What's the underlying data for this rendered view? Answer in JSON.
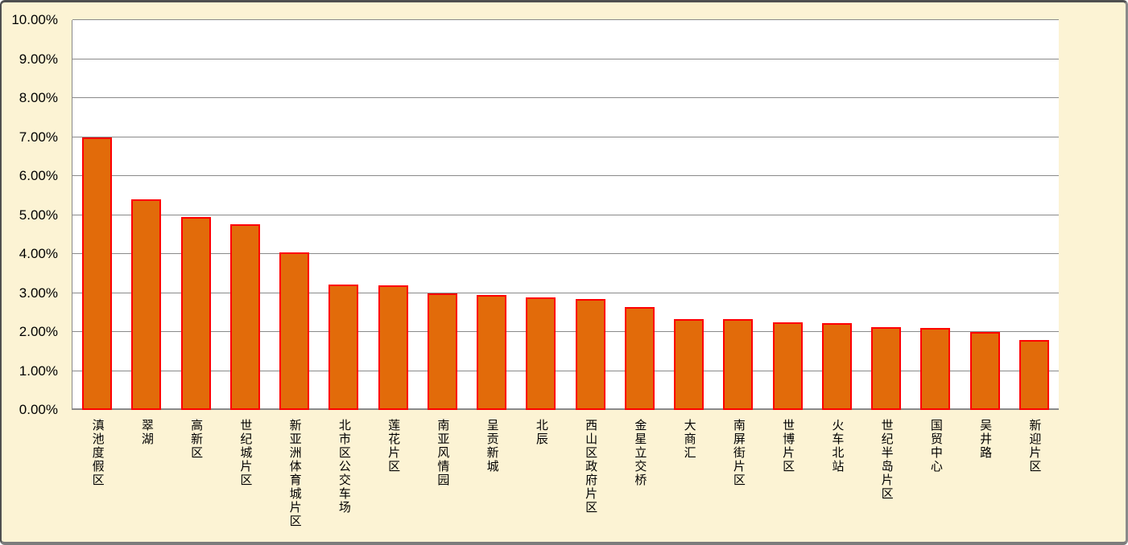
{
  "chart_data": {
    "type": "bar",
    "title": "",
    "xlabel": "",
    "ylabel": "",
    "categories": [
      "滇池度假区",
      "翠湖",
      "高新区",
      "世纪城片区",
      "新亚洲体育城片区",
      "北市区公交车场",
      "莲花片区",
      "南亚风情园",
      "呈贡新城",
      "北辰",
      "西山区政府片区",
      "金星立交桥",
      "大商汇",
      "南屏街片区",
      "世博片区",
      "火车北站",
      "世纪半岛片区",
      "国贸中心",
      "吴井路",
      "新迎片区"
    ],
    "values": [
      7.0,
      5.4,
      4.95,
      4.76,
      4.04,
      3.21,
      3.19,
      2.98,
      2.95,
      2.89,
      2.84,
      2.64,
      2.33,
      2.32,
      2.24,
      2.22,
      2.12,
      2.11,
      2.01,
      1.79
    ],
    "value_unit": "%",
    "y_tick_labels": [
      "0.00%",
      "1.00%",
      "2.00%",
      "3.00%",
      "4.00%",
      "5.00%",
      "6.00%",
      "7.00%",
      "8.00%",
      "9.00%",
      "10.00%"
    ],
    "ylim": [
      0,
      10
    ],
    "grid": true,
    "legend": "none",
    "colors": {
      "bar_fill": "#E26B0A",
      "bar_border": "#FF0000",
      "chart_background": "#FCF3D4",
      "plot_background": "#FFFFFF",
      "gridline": "#8A8A8A",
      "axis_line": "#8A8A8A",
      "text": "#000000"
    }
  }
}
